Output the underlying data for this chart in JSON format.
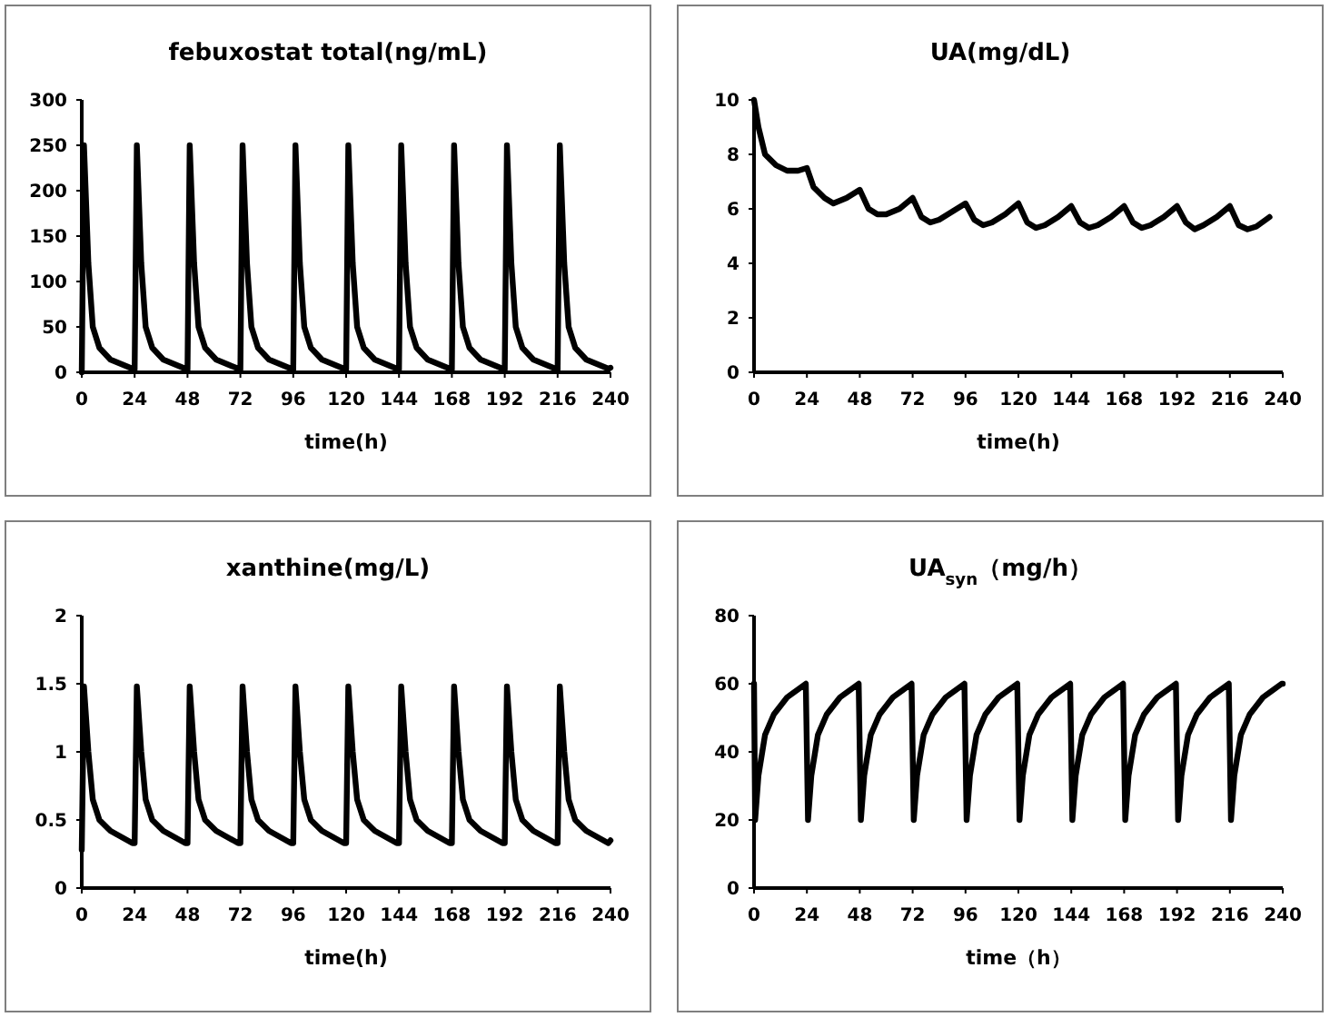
{
  "chart_data": [
    {
      "type": "line",
      "title": "febuxostat total(ng/mL)",
      "xlabel": "time(h)",
      "xlim": [
        0,
        240
      ],
      "xticks": [
        0,
        24,
        48,
        72,
        96,
        120,
        144,
        168,
        192,
        216,
        240
      ],
      "ylim": [
        0,
        300
      ],
      "yticks": [
        0,
        50,
        100,
        150,
        200,
        250,
        300
      ],
      "grid": false,
      "marker": "none",
      "line_style": "solid",
      "series": [
        {
          "color": "#000000",
          "x": [
            0,
            1,
            3,
            5,
            8,
            13,
            23,
            24,
            25,
            27,
            29,
            32,
            37,
            47,
            48,
            49,
            51,
            53,
            56,
            61,
            71,
            72,
            73,
            75,
            77,
            80,
            85,
            95,
            96,
            97,
            99,
            101,
            104,
            109,
            119,
            120,
            121,
            123,
            125,
            128,
            133,
            143,
            144,
            145,
            147,
            149,
            152,
            157,
            167,
            168,
            169,
            171,
            173,
            176,
            181,
            191,
            192,
            193,
            195,
            197,
            200,
            205,
            215,
            216,
            217,
            219,
            221,
            224,
            229,
            239,
            240
          ],
          "values": [
            0,
            250,
            120,
            50,
            27,
            14,
            4,
            3,
            250,
            120,
            50,
            27,
            14,
            4,
            3,
            250,
            120,
            50,
            27,
            14,
            4,
            3,
            250,
            120,
            50,
            27,
            14,
            4,
            3,
            250,
            120,
            50,
            27,
            14,
            4,
            3,
            250,
            120,
            50,
            27,
            14,
            4,
            3,
            250,
            120,
            50,
            27,
            14,
            4,
            3,
            250,
            120,
            50,
            27,
            14,
            4,
            3,
            250,
            120,
            50,
            27,
            14,
            4,
            3,
            250,
            120,
            50,
            27,
            14,
            4,
            5
          ]
        }
      ]
    },
    {
      "type": "line",
      "title": "UA(mg/dL)",
      "xlabel": "time(h)",
      "xlim": [
        0,
        240
      ],
      "xticks": [
        0,
        24,
        48,
        72,
        96,
        120,
        144,
        168,
        192,
        216,
        240
      ],
      "ylim": [
        0,
        10
      ],
      "yticks": [
        0,
        2,
        4,
        6,
        8,
        10
      ],
      "grid": false,
      "marker": "none",
      "line_style": "solid",
      "series": [
        {
          "color": "#000000",
          "x": [
            0,
            2,
            5,
            10,
            15,
            20,
            24,
            27,
            32,
            36,
            42,
            48,
            52,
            56,
            60,
            66,
            72,
            76,
            80,
            84,
            90,
            96,
            100,
            104,
            108,
            114,
            120,
            124,
            128,
            132,
            138,
            144,
            148,
            152,
            156,
            162,
            168,
            172,
            176,
            180,
            186,
            192,
            196,
            200,
            204,
            210,
            216,
            220,
            224,
            228,
            234
          ],
          "values": [
            10,
            9,
            8,
            7.6,
            7.4,
            7.4,
            7.5,
            6.8,
            6.4,
            6.2,
            6.4,
            6.7,
            6,
            5.8,
            5.8,
            6,
            6.4,
            5.7,
            5.5,
            5.6,
            5.9,
            6.2,
            5.6,
            5.4,
            5.5,
            5.8,
            6.2,
            5.5,
            5.3,
            5.4,
            5.7,
            6.1,
            5.5,
            5.3,
            5.4,
            5.7,
            6.1,
            5.5,
            5.3,
            5.4,
            5.7,
            6.1,
            5.5,
            5.25,
            5.4,
            5.7,
            6.1,
            5.4,
            5.25,
            5.35,
            5.7
          ]
        }
      ]
    },
    {
      "type": "line",
      "title": "xanthine(mg/L)",
      "xlabel": "time(h)",
      "xlim": [
        0,
        240
      ],
      "xticks": [
        0,
        24,
        48,
        72,
        96,
        120,
        144,
        168,
        192,
        216,
        240
      ],
      "ylim": [
        0,
        2
      ],
      "yticks": [
        0,
        0.5,
        1,
        1.5,
        2
      ],
      "grid": false,
      "marker": "none",
      "line_style": "solid",
      "series": [
        {
          "color": "#000000",
          "x": [
            0,
            1,
            3,
            5,
            8,
            13,
            23,
            24,
            25,
            27,
            29,
            32,
            37,
            47,
            48,
            49,
            51,
            53,
            56,
            61,
            71,
            72,
            73,
            75,
            77,
            80,
            85,
            95,
            96,
            97,
            99,
            101,
            104,
            109,
            119,
            120,
            121,
            123,
            125,
            128,
            133,
            143,
            144,
            145,
            147,
            149,
            152,
            157,
            167,
            168,
            169,
            171,
            173,
            176,
            181,
            191,
            192,
            193,
            195,
            197,
            200,
            205,
            215,
            216,
            217,
            219,
            221,
            224,
            229,
            239,
            240
          ],
          "values": [
            0.28,
            1.48,
            1,
            0.65,
            0.5,
            0.42,
            0.33,
            0.33,
            1.48,
            1,
            0.65,
            0.5,
            0.42,
            0.33,
            0.33,
            1.48,
            1,
            0.65,
            0.5,
            0.42,
            0.33,
            0.33,
            1.48,
            1,
            0.65,
            0.5,
            0.42,
            0.33,
            0.33,
            1.48,
            1,
            0.65,
            0.5,
            0.42,
            0.33,
            0.33,
            1.48,
            1,
            0.65,
            0.5,
            0.42,
            0.33,
            0.33,
            1.48,
            1,
            0.65,
            0.5,
            0.42,
            0.33,
            0.33,
            1.48,
            1,
            0.65,
            0.5,
            0.42,
            0.33,
            0.33,
            1.48,
            1,
            0.65,
            0.5,
            0.42,
            0.33,
            0.33,
            1.48,
            1,
            0.65,
            0.5,
            0.42,
            0.33,
            0.35
          ]
        }
      ]
    },
    {
      "type": "line",
      "title": "UA$_{syn}$（mg/h）",
      "xlabel": "time（h）",
      "xlim": [
        0,
        240
      ],
      "xticks": [
        0,
        24,
        48,
        72,
        96,
        120,
        144,
        168,
        192,
        216,
        240
      ],
      "ylim": [
        0,
        80
      ],
      "yticks": [
        0,
        20,
        40,
        60,
        80
      ],
      "grid": false,
      "marker": "none",
      "line_style": "solid",
      "series": [
        {
          "color": "#000000",
          "x": [
            0,
            0.5,
            2,
            5,
            9,
            15,
            23.5,
            24.5,
            26,
            29,
            33,
            39,
            47.5,
            48.5,
            50,
            53,
            57,
            63,
            71.5,
            72.5,
            74,
            77,
            81,
            87,
            95.5,
            96.5,
            98,
            101,
            105,
            111,
            119.5,
            120.5,
            122,
            125,
            129,
            135,
            143.5,
            144.5,
            146,
            149,
            153,
            159,
            167.5,
            168.5,
            170,
            173,
            177,
            183,
            191.5,
            192.5,
            194,
            197,
            201,
            207,
            215.5,
            216.5,
            218,
            221,
            225,
            231,
            239.5,
            240
          ],
          "values": [
            60,
            20,
            33,
            45,
            51,
            56,
            60,
            20,
            33,
            45,
            51,
            56,
            60,
            20,
            33,
            45,
            51,
            56,
            60,
            20,
            33,
            45,
            51,
            56,
            60,
            20,
            33,
            45,
            51,
            56,
            60,
            20,
            33,
            45,
            51,
            56,
            60,
            20,
            33,
            45,
            51,
            56,
            60,
            20,
            33,
            45,
            51,
            56,
            60,
            20,
            33,
            45,
            51,
            56,
            60,
            20,
            33,
            45,
            51,
            56,
            60,
            60
          ]
        }
      ]
    }
  ]
}
